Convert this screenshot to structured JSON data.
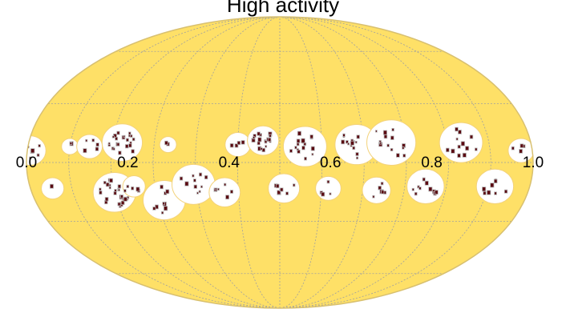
{
  "title": "High activity",
  "projection": "mollweide",
  "graticule": {
    "meridians": 12,
    "parallels": 6,
    "style": "dotted"
  },
  "colors": {
    "background": "#fee067",
    "outline": "#d8c070",
    "grid": "#a0a0a0",
    "halo": "#ffffff",
    "spot": "#5a0a12",
    "spot_edge": "#b8b8b8"
  },
  "x_ticks": [
    "0.0",
    "0.2",
    "0.4",
    "0.6",
    "0.8",
    "1.0"
  ],
  "active_regions": [
    {
      "lon": -178,
      "lat": 6,
      "spread": 8,
      "spots": 6
    },
    {
      "lon": -164,
      "lat": -13,
      "spread": 5,
      "spots": 1
    },
    {
      "lon": -150,
      "lat": 8,
      "spread": 3,
      "spots": 2
    },
    {
      "lon": -136,
      "lat": 8,
      "spread": 6,
      "spots": 5
    },
    {
      "lon": -113,
      "lat": 10,
      "spread": 11,
      "spots": 22
    },
    {
      "lon": -120,
      "lat": -15,
      "spread": 12,
      "spots": 28
    },
    {
      "lon": -105,
      "lat": -12,
      "spread": 5,
      "spots": 3
    },
    {
      "lon": -85,
      "lat": -19,
      "spread": 12,
      "spots": 10
    },
    {
      "lon": -80,
      "lat": 9,
      "spread": 3,
      "spots": 2
    },
    {
      "lon": -62,
      "lat": -11,
      "spread": 12,
      "spots": 10
    },
    {
      "lon": -40,
      "lat": -15,
      "spread": 8,
      "spots": 6
    },
    {
      "lon": -30,
      "lat": 9,
      "spread": 6,
      "spots": 4
    },
    {
      "lon": -12,
      "lat": 11,
      "spread": 8,
      "spots": 18
    },
    {
      "lon": 3,
      "lat": -13,
      "spread": 8,
      "spots": 8
    },
    {
      "lon": 18,
      "lat": 8,
      "spread": 12,
      "spots": 16
    },
    {
      "lon": 35,
      "lat": -13,
      "spread": 6,
      "spots": 4
    },
    {
      "lon": 55,
      "lat": 9,
      "spread": 12,
      "spots": 14
    },
    {
      "lon": 70,
      "lat": -14,
      "spread": 7,
      "spots": 6
    },
    {
      "lon": 80,
      "lat": 10,
      "spread": 14,
      "spots": 14
    },
    {
      "lon": 105,
      "lat": -12,
      "spread": 10,
      "spots": 10
    },
    {
      "lon": 130,
      "lat": 10,
      "spread": 12,
      "spots": 12
    },
    {
      "lon": 155,
      "lat": -12,
      "spread": 10,
      "spots": 8
    },
    {
      "lon": 172,
      "lat": 6,
      "spread": 6,
      "spots": 4
    }
  ]
}
